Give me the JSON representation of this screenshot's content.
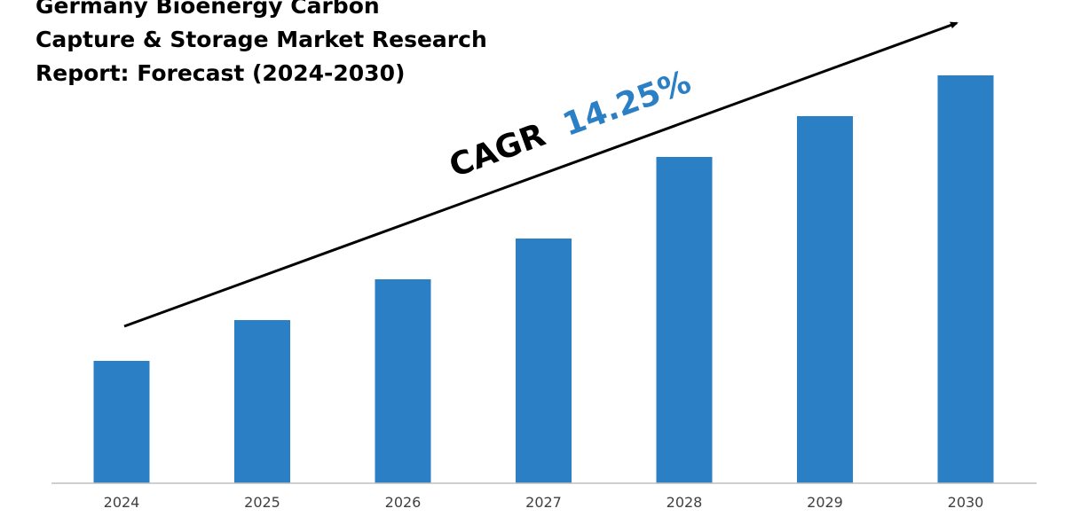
{
  "title": {
    "line1": "Germany Bioenergy Carbon",
    "line2": "Capture & Storage Market Research",
    "line3": "Report: Forecast (2024-2030)"
  },
  "annotation": {
    "label": "CAGR",
    "value": "14.25%",
    "label_color": "#000000",
    "value_color": "#2a7fc5"
  },
  "colors": {
    "bar": "#2a7fc5",
    "axis": "#bfbfbf",
    "arrow": "#000000"
  },
  "chart_data": {
    "type": "bar",
    "categories": [
      "2024",
      "2025",
      "2026",
      "2027",
      "2028",
      "2029",
      "2030"
    ],
    "values": [
      30,
      40,
      50,
      60,
      80,
      90,
      100
    ],
    "ylim": [
      0,
      100
    ],
    "grid": false,
    "legend": "none",
    "trend_arrow": true
  }
}
